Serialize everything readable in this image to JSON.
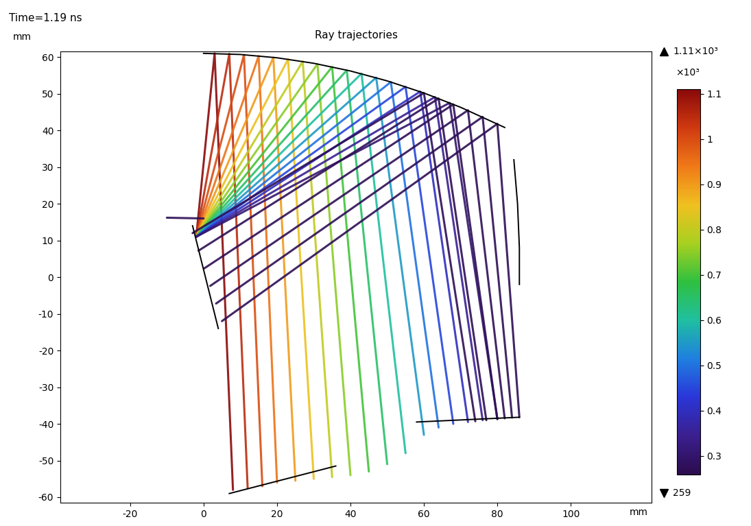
{
  "chart_data": {
    "type": "rays",
    "title": "Ray trajectories",
    "annotations": [
      "Time=1.19 ns"
    ],
    "xlabel": "mm",
    "ylabel": "mm",
    "xlim": [
      -39,
      122
    ],
    "ylim": [
      -61.5,
      61.5
    ],
    "xticks": [
      -20,
      0,
      20,
      40,
      60,
      80,
      100
    ],
    "yticks": [
      -60,
      -50,
      -40,
      -30,
      -20,
      -10,
      0,
      10,
      20,
      30,
      40,
      50,
      60
    ],
    "rays": [
      {
        "value": 1110,
        "path": [
          [
            -2,
            11
          ],
          [
            3,
            61.0
          ],
          [
            8,
            -58
          ]
        ]
      },
      {
        "value": 1050,
        "path": [
          [
            -2,
            11
          ],
          [
            7,
            60.9
          ],
          [
            12,
            -57.5
          ]
        ]
      },
      {
        "value": 1000,
        "path": [
          [
            -2,
            11
          ],
          [
            11,
            60.6
          ],
          [
            16,
            -57
          ]
        ]
      },
      {
        "value": 950,
        "path": [
          [
            -2,
            11
          ],
          [
            15,
            60.3
          ],
          [
            20,
            -56
          ]
        ]
      },
      {
        "value": 900,
        "path": [
          [
            -2,
            11
          ],
          [
            19,
            59.9
          ],
          [
            25,
            -55.5
          ]
        ]
      },
      {
        "value": 850,
        "path": [
          [
            -2,
            11
          ],
          [
            23,
            59.4
          ],
          [
            30,
            -55
          ]
        ]
      },
      {
        "value": 800,
        "path": [
          [
            -2,
            11
          ],
          [
            27,
            58.8
          ],
          [
            35,
            -54.5
          ]
        ]
      },
      {
        "value": 750,
        "path": [
          [
            -2,
            11
          ],
          [
            31,
            58.1
          ],
          [
            40,
            -54
          ]
        ]
      },
      {
        "value": 700,
        "path": [
          [
            -2,
            11
          ],
          [
            35,
            57.3
          ],
          [
            45,
            -53
          ]
        ]
      },
      {
        "value": 650,
        "path": [
          [
            -2,
            11
          ],
          [
            39,
            56.4
          ],
          [
            50,
            -51
          ]
        ]
      },
      {
        "value": 600,
        "path": [
          [
            -2,
            11
          ],
          [
            43,
            55.5
          ],
          [
            55,
            -48
          ]
        ]
      },
      {
        "value": 550,
        "path": [
          [
            -2,
            11
          ],
          [
            47,
            54.4
          ],
          [
            60,
            -43
          ]
        ]
      },
      {
        "value": 500,
        "path": [
          [
            -2,
            11
          ],
          [
            51,
            53.2
          ],
          [
            64,
            -41
          ]
        ]
      },
      {
        "value": 450,
        "path": [
          [
            -2,
            11
          ],
          [
            55,
            51.9
          ],
          [
            68,
            -40
          ]
        ]
      },
      {
        "value": 400,
        "path": [
          [
            -2,
            11
          ],
          [
            59,
            50.6
          ],
          [
            72,
            -39.5
          ]
        ]
      },
      {
        "value": 350,
        "path": [
          [
            -2,
            11
          ],
          [
            63,
            49.1
          ],
          [
            76,
            -39
          ]
        ]
      },
      {
        "value": 300,
        "path": [
          [
            -2,
            11
          ],
          [
            67,
            47.5
          ],
          [
            80,
            -38.7
          ]
        ]
      },
      {
        "value": 270,
        "path": [
          [
            -10,
            16.2
          ],
          [
            0,
            16
          ]
        ]
      },
      {
        "value": 270,
        "path": [
          [
            -3,
            12
          ],
          [
            60,
            50.2
          ],
          [
            74,
            -39.3
          ]
        ]
      },
      {
        "value": 270,
        "path": [
          [
            -1.4,
            7.2
          ],
          [
            64,
            48.7
          ],
          [
            77,
            -39
          ]
        ]
      },
      {
        "value": 270,
        "path": [
          [
            0.2,
            2.4
          ],
          [
            68,
            47.1
          ],
          [
            80,
            -38.7
          ]
        ]
      },
      {
        "value": 270,
        "path": [
          [
            1.8,
            -2.4
          ],
          [
            72,
            45.5
          ],
          [
            82,
            -38.5
          ]
        ]
      },
      {
        "value": 270,
        "path": [
          [
            3.4,
            -7.2
          ],
          [
            76,
            43.7
          ],
          [
            84,
            -38.3
          ]
        ]
      },
      {
        "value": 270,
        "path": [
          [
            5,
            -12
          ],
          [
            80,
            41.8
          ],
          [
            86,
            -38.2
          ]
        ]
      }
    ],
    "surfaces": [
      [
        [
          0,
          61
        ],
        [
          10,
          60.7
        ],
        [
          20,
          59.8
        ],
        [
          30,
          58.3
        ],
        [
          40,
          56.2
        ],
        [
          50,
          53.5
        ],
        [
          60,
          50.2
        ],
        [
          70,
          46.3
        ],
        [
          82,
          40.8
        ]
      ],
      [
        [
          -3,
          14
        ],
        [
          4,
          -14
        ]
      ],
      [
        [
          84.5,
          32
        ],
        [
          85.5,
          20
        ],
        [
          86,
          8
        ],
        [
          86,
          -2
        ]
      ],
      [
        [
          58,
          -39.5
        ],
        [
          86,
          -38.2
        ]
      ],
      [
        [
          7,
          -59
        ],
        [
          36,
          -51.5
        ]
      ]
    ],
    "colorbar": {
      "range": [
        259,
        1110
      ],
      "ticks": [
        {
          "value": 300,
          "label": "0.3"
        },
        {
          "value": 400,
          "label": "0.4"
        },
        {
          "value": 500,
          "label": "0.5"
        },
        {
          "value": 600,
          "label": "0.6"
        },
        {
          "value": 700,
          "label": "0.7"
        },
        {
          "value": 800,
          "label": "0.8"
        },
        {
          "value": 900,
          "label": "0.9"
        },
        {
          "value": 1000,
          "label": "1"
        },
        {
          "value": 1100,
          "label": "1.1"
        }
      ],
      "multiplier": "×10³",
      "max_label": "1.11×10³",
      "min_label": "259"
    }
  }
}
